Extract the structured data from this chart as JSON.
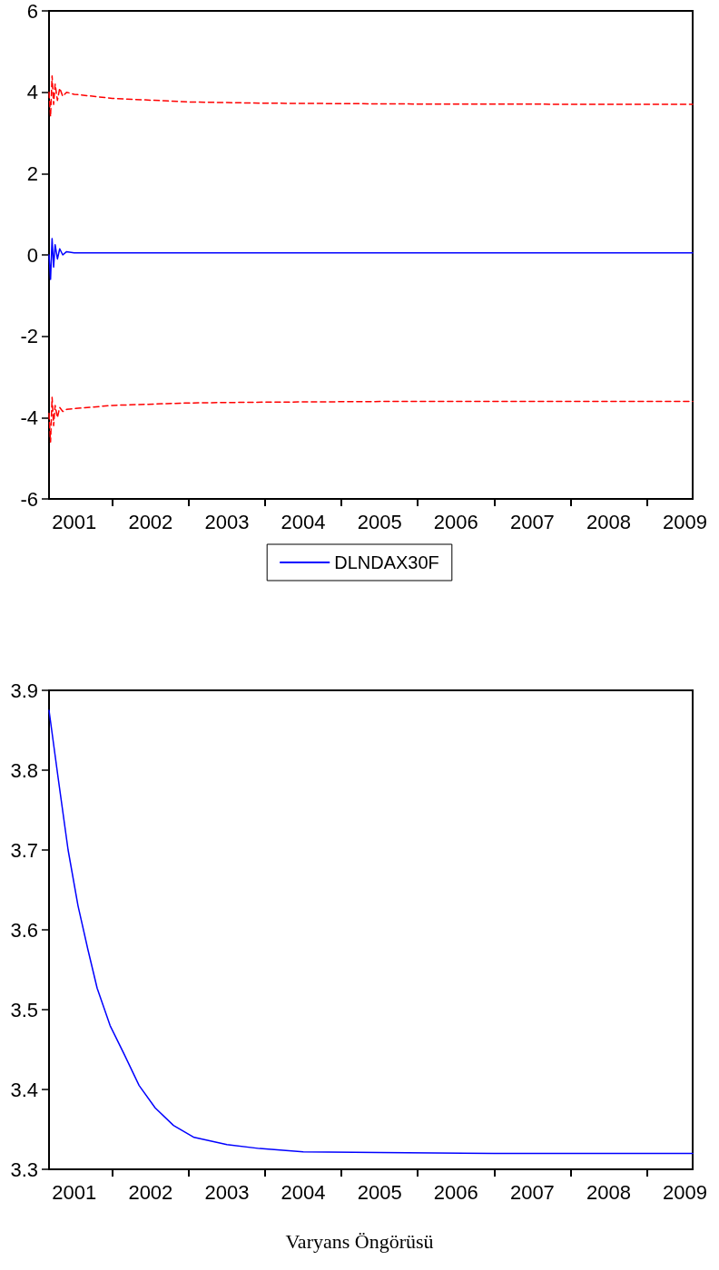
{
  "chart_data": [
    {
      "type": "line",
      "xlim": [
        2001.17,
        2009.6
      ],
      "ylim": [
        -6,
        6
      ],
      "yticks": [
        -6,
        -4,
        -2,
        0,
        2,
        4,
        6
      ],
      "xticks": [
        {
          "value": 2001.5,
          "label": "2001"
        },
        {
          "value": 2002,
          "label": null
        },
        {
          "value": 2002.5,
          "label": "2002"
        },
        {
          "value": 2003,
          "label": null
        },
        {
          "value": 2003.5,
          "label": "2003"
        },
        {
          "value": 2004,
          "label": null
        },
        {
          "value": 2004.5,
          "label": "2004"
        },
        {
          "value": 2005,
          "label": null
        },
        {
          "value": 2005.5,
          "label": "2005"
        },
        {
          "value": 2006,
          "label": null
        },
        {
          "value": 2006.5,
          "label": "2006"
        },
        {
          "value": 2007,
          "label": null
        },
        {
          "value": 2007.5,
          "label": "2007"
        },
        {
          "value": 2008,
          "label": null
        },
        {
          "value": 2008.5,
          "label": "2008"
        },
        {
          "value": 2009,
          "label": null
        },
        {
          "value": 2009.5,
          "label": "2009"
        }
      ],
      "x": [
        2001.17,
        2001.19,
        2001.21,
        2001.23,
        2001.25,
        2001.28,
        2001.31,
        2001.35,
        2001.4,
        2001.5,
        2002,
        2003,
        2004,
        2005,
        2006,
        2009.6
      ],
      "grid": false,
      "legend": "bottom",
      "marker": "none",
      "series": [
        {
          "name": "DLNDAX30F",
          "color": "#0000ff",
          "line_style": "solid",
          "values": [
            0,
            -0.6,
            0.4,
            -0.3,
            0.25,
            -0.1,
            0.15,
            0,
            0.08,
            0.05,
            0.05,
            0.05,
            0.05,
            0.05,
            0.05,
            0.05
          ]
        },
        {
          "color": "#ff0000",
          "line_style": "dashed",
          "values": [
            4.0,
            3.4,
            4.4,
            3.7,
            4.2,
            3.8,
            4.1,
            3.9,
            4.0,
            3.95,
            3.85,
            3.76,
            3.73,
            3.72,
            3.71,
            3.7
          ]
        },
        {
          "color": "#ff0000",
          "line_style": "dashed",
          "values": [
            -3.9,
            -4.6,
            -3.5,
            -4.2,
            -3.7,
            -4.0,
            -3.75,
            -3.85,
            -3.8,
            -3.78,
            -3.7,
            -3.64,
            -3.62,
            -3.61,
            -3.6,
            -3.6
          ]
        }
      ]
    },
    {
      "type": "line",
      "xlim": [
        2001.17,
        2009.6
      ],
      "ylim": [
        3.3,
        3.9
      ],
      "yticks": [
        3.3,
        3.4,
        3.5,
        3.6,
        3.7,
        3.8,
        3.9
      ],
      "xticks": [
        {
          "value": 2001.5,
          "label": "2001"
        },
        {
          "value": 2002,
          "label": null
        },
        {
          "value": 2002.5,
          "label": "2002"
        },
        {
          "value": 2003,
          "label": null
        },
        {
          "value": 2003.5,
          "label": "2003"
        },
        {
          "value": 2004,
          "label": null
        },
        {
          "value": 2004.5,
          "label": "2004"
        },
        {
          "value": 2005,
          "label": null
        },
        {
          "value": 2005.5,
          "label": "2005"
        },
        {
          "value": 2006,
          "label": null
        },
        {
          "value": 2006.5,
          "label": "2006"
        },
        {
          "value": 2007,
          "label": null
        },
        {
          "value": 2007.5,
          "label": "2007"
        },
        {
          "value": 2008,
          "label": null
        },
        {
          "value": 2008.5,
          "label": "2008"
        },
        {
          "value": 2009,
          "label": null
        },
        {
          "value": 2009.5,
          "label": "2009"
        }
      ],
      "x": [
        2001.17,
        2001.29,
        2001.42,
        2001.55,
        2001.68,
        2001.8,
        2001.97,
        2002.15,
        2002.35,
        2002.56,
        2002.8,
        2003.07,
        2003.5,
        2003.93,
        2004.5,
        2005.5,
        2007,
        2009.6
      ],
      "grid": false,
      "legend": false,
      "marker": "none",
      "values": [
        3.875,
        3.79,
        3.7,
        3.63,
        3.575,
        3.527,
        3.48,
        3.445,
        3.405,
        3.377,
        3.355,
        3.34,
        3.331,
        3.326,
        3.322,
        3.321,
        3.32,
        3.32
      ],
      "color": "#0000ff",
      "line_style": "solid",
      "annotations": [
        "Varyans Öngörüsü"
      ]
    }
  ]
}
